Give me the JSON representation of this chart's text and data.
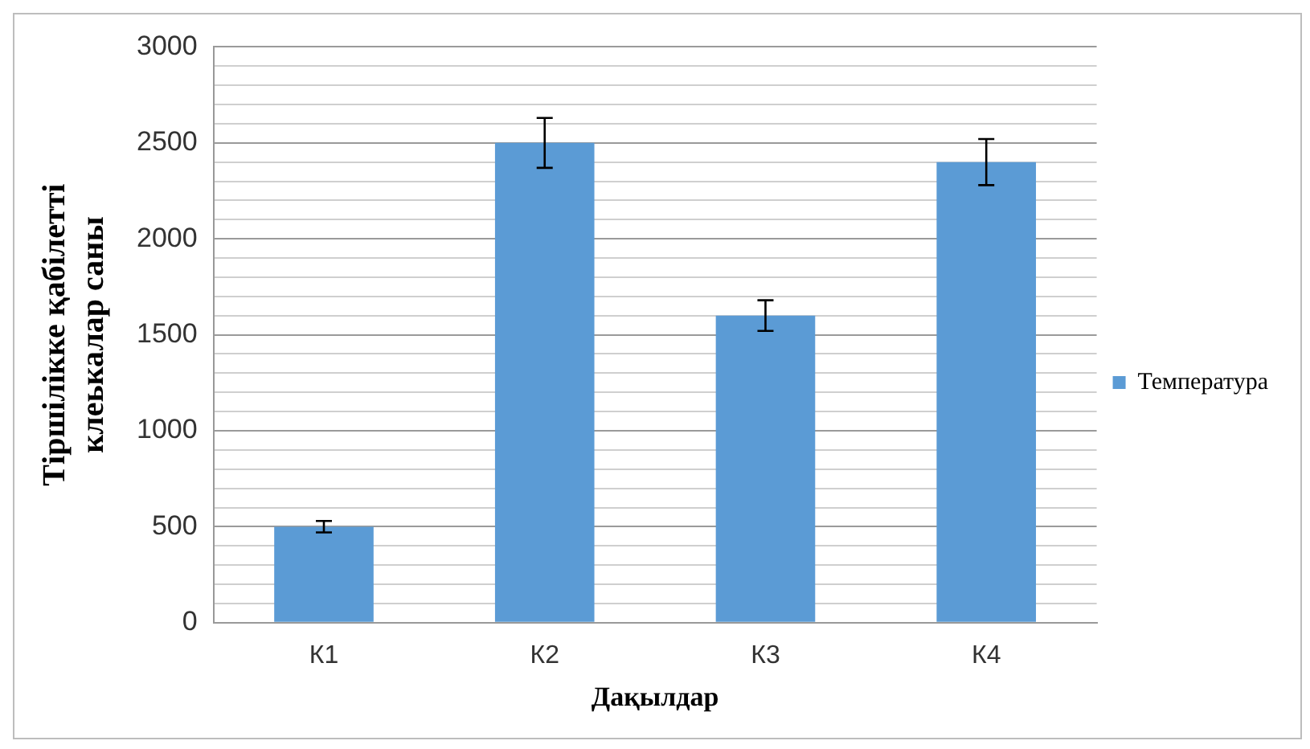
{
  "chart_data": {
    "type": "bar",
    "xlabel": "Дақылдар",
    "ylabel": "Тіршілікке қабілетті\nклеькалар саны",
    "categories": [
      "К1",
      "К2",
      "К3",
      "К4"
    ],
    "series": [
      {
        "name": "Температура",
        "color": "#5b9bd5",
        "values": [
          500,
          2500,
          1600,
          2400
        ],
        "errors": [
          30,
          130,
          80,
          120
        ]
      }
    ],
    "ylim": [
      0,
      3000
    ],
    "yticks": [
      0,
      {
        "value": 100,
        "label": null
      },
      {
        "value": 200,
        "label": null
      },
      {
        "value": 300,
        "label": null
      },
      {
        "value": 400,
        "label": null
      },
      500,
      {
        "value": 600,
        "label": null
      },
      {
        "value": 700,
        "label": null
      },
      {
        "value": 800,
        "label": null
      },
      {
        "value": 900,
        "label": null
      },
      1000,
      {
        "value": 1100,
        "label": null
      },
      {
        "value": 1200,
        "label": null
      },
      {
        "value": 1300,
        "label": null
      },
      {
        "value": 1400,
        "label": null
      },
      1500,
      {
        "value": 1600,
        "label": null
      },
      {
        "value": 1700,
        "label": null
      },
      {
        "value": 1800,
        "label": null
      },
      {
        "value": 1900,
        "label": null
      },
      2000,
      {
        "value": 2100,
        "label": null
      },
      {
        "value": 2200,
        "label": null
      },
      {
        "value": 2300,
        "label": null
      },
      {
        "value": 2400,
        "label": null
      },
      2500,
      {
        "value": 2600,
        "label": null
      },
      {
        "value": 2700,
        "label": null
      },
      {
        "value": 2800,
        "label": null
      },
      {
        "value": 2900,
        "label": null
      },
      3000
    ],
    "grid": "y",
    "legend": "right"
  }
}
